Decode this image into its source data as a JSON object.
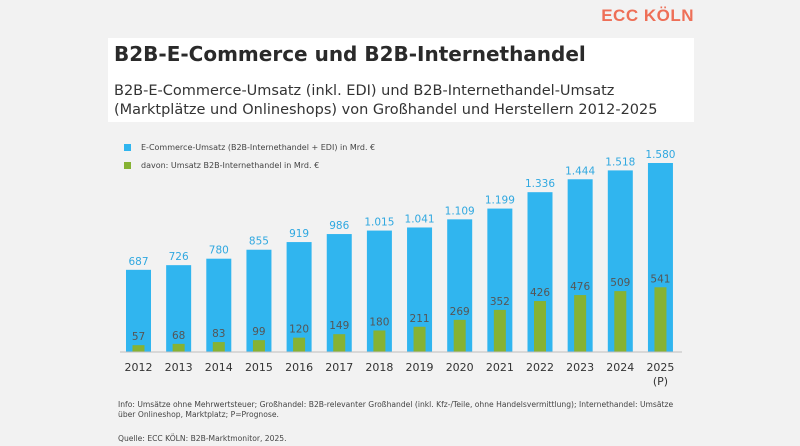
{
  "logo": "ECC KÖLN",
  "title": "B2B-E-Commerce und B2B-Internethandel",
  "subtitle": "B2B-E-Commerce-Umsatz (inkl. EDI) und B2B-Internethandel-Umsatz (Marktplätze und Onlineshops) von Großhandel und Herstellern 2012-2025",
  "legend": [
    {
      "label": "E-Commerce-Umsatz (B2B-Internethandel + EDI) in Mrd. €",
      "color": "#30b5ef"
    },
    {
      "label": "davon: Umsatz B2B-Internethandel in Mrd. €",
      "color": "#86b233"
    }
  ],
  "footnote": "Info: Umsätze ohne Mehrwertsteuer; Großhandel: B2B-relevanter Großhandel (inkl. Kfz-/Teile, ohne Handelsvermittlung); Internethandel: Umsätze über Onlineshop, Marktplatz; P=Prognose.",
  "source": "Quelle: ECC KÖLN: B2B-Marktmonitor, 2025.",
  "chart_data": {
    "type": "bar",
    "categories": [
      "2012",
      "2013",
      "2014",
      "2015",
      "2016",
      "2017",
      "2018",
      "2019",
      "2020",
      "2021",
      "2022",
      "2023",
      "2024",
      "2025"
    ],
    "category_sublabels": [
      "",
      "",
      "",
      "",
      "",
      "",
      "",
      "",
      "",
      "",
      "",
      "",
      "",
      "(P)"
    ],
    "series": [
      {
        "name": "E-Commerce-Umsatz (B2B-Internethandel + EDI) in Mrd. €",
        "color": "#30b5ef",
        "values": [
          687,
          726,
          780,
          855,
          919,
          986,
          1015,
          1041,
          1109,
          1199,
          1336,
          1444,
          1518,
          1580
        ],
        "labels": [
          "687",
          "726",
          "780",
          "855",
          "919",
          "986",
          "1.015",
          "1.041",
          "1.109",
          "1.199",
          "1.336",
          "1.444",
          "1.518",
          "1.580"
        ]
      },
      {
        "name": "davon: Umsatz B2B-Internethandel in Mrd. €",
        "color": "#86b233",
        "values": [
          57,
          68,
          83,
          99,
          120,
          149,
          180,
          211,
          269,
          352,
          426,
          476,
          509,
          541
        ],
        "labels": [
          "57",
          "68",
          "83",
          "99",
          "120",
          "149",
          "180",
          "211",
          "269",
          "352",
          "426",
          "476",
          "509",
          "541"
        ]
      }
    ],
    "ylim": [
      0,
      1580
    ],
    "grid": false
  }
}
